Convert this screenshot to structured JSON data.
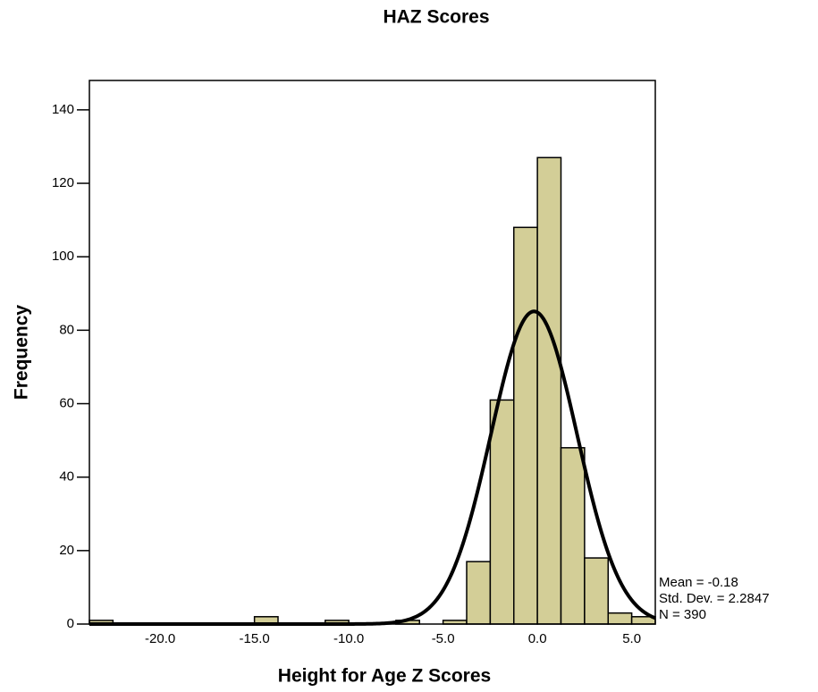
{
  "chart_data": {
    "type": "histogram",
    "title": "HAZ Scores",
    "x_label": "Height for Age Z Scores",
    "y_label": "Frequency",
    "bins": [
      -23.75,
      -22.5,
      -21.25,
      -20,
      -18.75,
      -17.5,
      -16.25,
      -15,
      -13.75,
      -12.5,
      -11.25,
      -10,
      -8.75,
      -7.5,
      -6.25,
      -5,
      -3.75,
      -2.5,
      -1.25,
      0,
      1.25,
      2.5,
      3.75,
      5,
      6.25
    ],
    "values": [
      1,
      0,
      0,
      0,
      0,
      0,
      0,
      2,
      0,
      0,
      1,
      0,
      0,
      1,
      0,
      1,
      17,
      61,
      108,
      127,
      48,
      18,
      3,
      2
    ],
    "color": "#d3ce97",
    "xlim": [
      -23.75,
      6.25
    ],
    "ylim": [
      0,
      148
    ],
    "xticks": [
      {
        "value": -20,
        "label": "-20.0"
      },
      {
        "value": -15,
        "label": "-15.0"
      },
      {
        "value": -10,
        "label": "-10.0"
      },
      {
        "value": -5,
        "label": "-5.0"
      },
      {
        "value": 0,
        "label": "0.0"
      },
      {
        "value": 5,
        "label": "5.0"
      }
    ],
    "yticks": [
      0,
      20,
      40,
      60,
      80,
      100,
      120,
      140
    ],
    "stats": {
      "values": [
        -0.18,
        2.2847,
        390
      ],
      "value_labels": [
        "Mean = -0.18",
        "Std. Dev. = 2.2847",
        "N = 390"
      ]
    }
  }
}
